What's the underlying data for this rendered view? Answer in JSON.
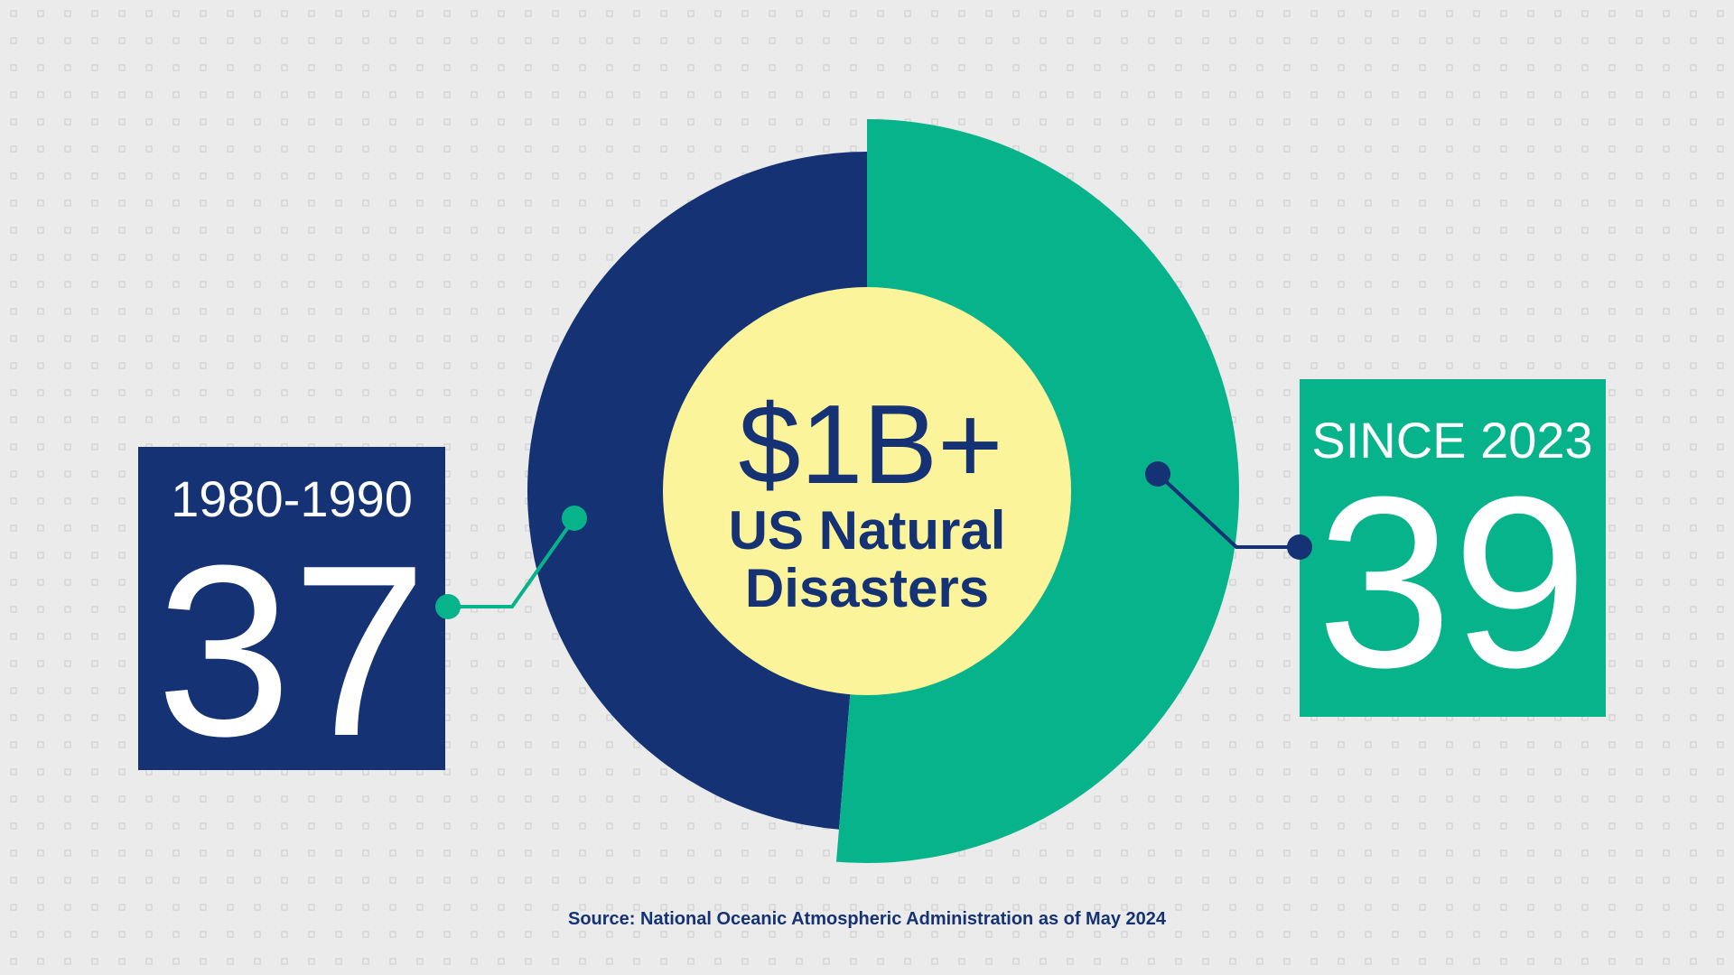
{
  "chart_data": {
    "type": "donut",
    "title": "$1B+",
    "subtitle": "US Natural Disasters",
    "categories": [
      "1980-1990",
      "SINCE 2023"
    ],
    "values": [
      37,
      39
    ],
    "colors": [
      "#143274",
      "#07b38a"
    ],
    "source": "Source: National Oceanic Atmospheric Administration as of May 2024"
  }
}
